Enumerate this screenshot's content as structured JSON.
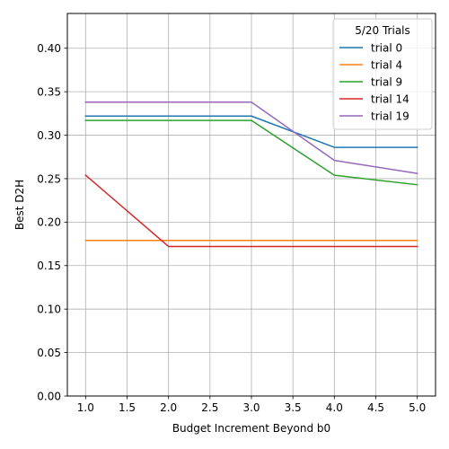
{
  "chart_data": {
    "type": "line",
    "title": "",
    "xlabel": "Budget Increment Beyond b0",
    "ylabel": "Best D2H",
    "xlim": [
      0.78,
      5.22
    ],
    "ylim": [
      0.0,
      0.44
    ],
    "xticks": [
      1.0,
      1.5,
      2.0,
      2.5,
      3.0,
      3.5,
      4.0,
      4.5,
      5.0
    ],
    "xtick_labels": [
      "1.0",
      "1.5",
      "2.0",
      "2.5",
      "3.0",
      "3.5",
      "4.0",
      "4.5",
      "5.0"
    ],
    "yticks": [
      0.0,
      0.05,
      0.1,
      0.15,
      0.2,
      0.25,
      0.3,
      0.35,
      0.4
    ],
    "ytick_labels": [
      "0.00",
      "0.05",
      "0.10",
      "0.15",
      "0.20",
      "0.25",
      "0.30",
      "0.35",
      "0.40"
    ],
    "grid": true,
    "legend": {
      "title": "5/20 Trials",
      "placement": "top-right"
    },
    "x": [
      1,
      2,
      3,
      4,
      5
    ],
    "series": [
      {
        "name": "trial 0",
        "color": "#1f77b4",
        "values": [
          0.322,
          0.322,
          0.322,
          0.286,
          0.286
        ]
      },
      {
        "name": "trial 4",
        "color": "#ff7f0e",
        "values": [
          0.179,
          0.179,
          0.179,
          0.179,
          0.179
        ]
      },
      {
        "name": "trial 9",
        "color": "#2ca02c",
        "values": [
          0.317,
          0.317,
          0.317,
          0.254,
          0.243
        ]
      },
      {
        "name": "trial 14",
        "color": "#d62728",
        "values": [
          0.254,
          0.172,
          0.172,
          0.172,
          0.172
        ]
      },
      {
        "name": "trial 19",
        "color": "#9467bd",
        "values": [
          0.338,
          0.338,
          0.338,
          0.271,
          0.256
        ]
      }
    ]
  }
}
